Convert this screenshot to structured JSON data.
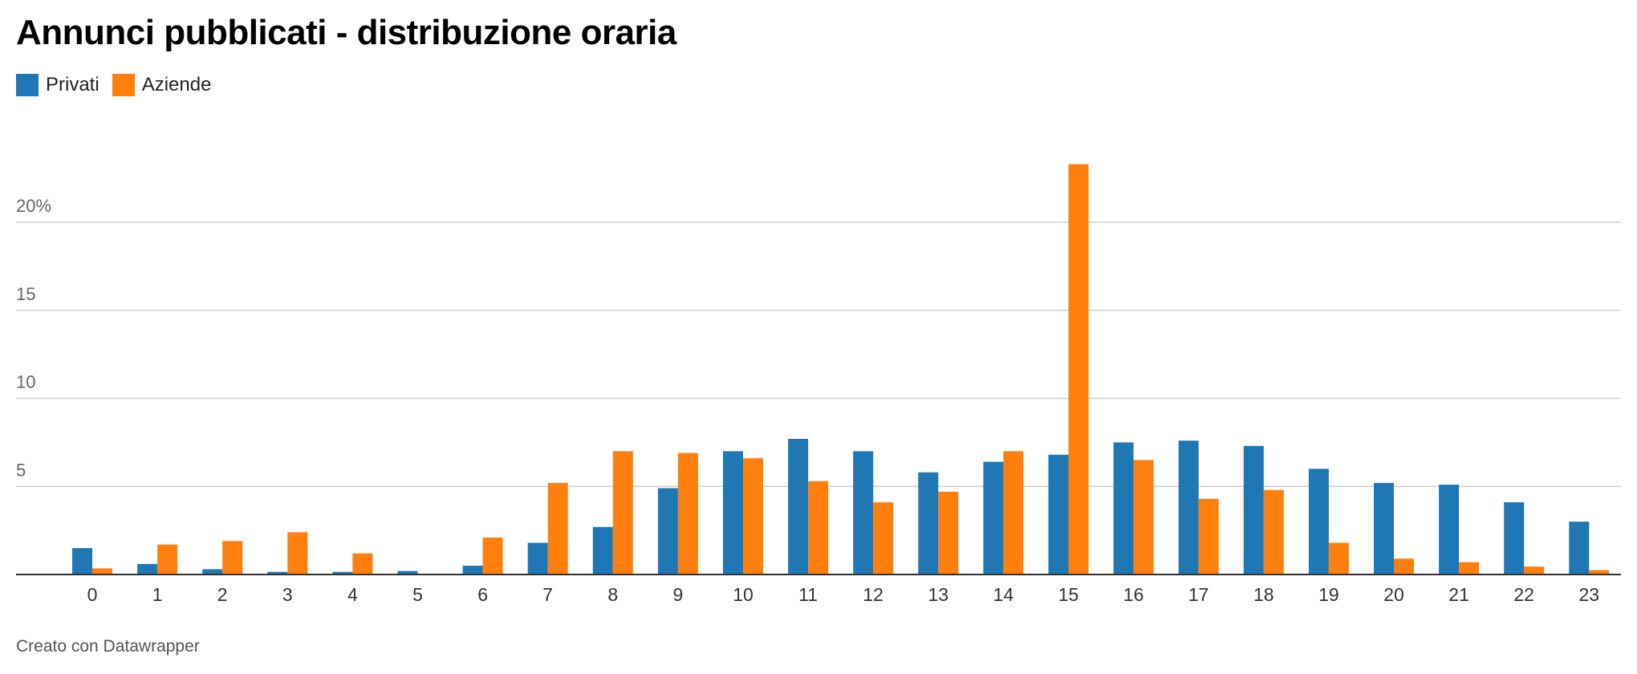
{
  "title": "Annunci pubblicati - distribuzione oraria",
  "footer": "Creato con Datawrapper",
  "legend": [
    {
      "label": "Privati",
      "color": "#1f77b4"
    },
    {
      "label": "Aziende",
      "color": "#ff7f0e"
    }
  ],
  "chart_data": {
    "type": "bar",
    "title": "Annunci pubblicati - distribuzione oraria",
    "xlabel": "",
    "ylabel": "",
    "ylim": [
      0,
      25
    ],
    "yticks": [
      5,
      10,
      15,
      20
    ],
    "ytick_labels": [
      "5",
      "10",
      "15",
      "20%"
    ],
    "grid": true,
    "legend_position": "top-left",
    "categories": [
      "0",
      "1",
      "2",
      "3",
      "4",
      "5",
      "6",
      "7",
      "8",
      "9",
      "10",
      "11",
      "12",
      "13",
      "14",
      "15",
      "16",
      "17",
      "18",
      "19",
      "20",
      "21",
      "22",
      "23"
    ],
    "series": [
      {
        "name": "Privati",
        "color": "#1f77b4",
        "values": [
          1.5,
          0.6,
          0.3,
          0.15,
          0.15,
          0.2,
          0.5,
          1.8,
          2.7,
          4.9,
          7.0,
          7.7,
          7.0,
          5.8,
          6.4,
          6.8,
          7.5,
          7.6,
          7.3,
          6.0,
          5.2,
          5.1,
          4.1,
          3.0
        ]
      },
      {
        "name": "Aziende",
        "color": "#ff7f0e",
        "values": [
          0.35,
          1.7,
          1.9,
          2.4,
          1.2,
          0.05,
          2.1,
          5.2,
          7.0,
          6.9,
          6.6,
          5.3,
          4.1,
          4.7,
          7.0,
          23.3,
          6.5,
          4.3,
          4.8,
          1.8,
          0.9,
          0.7,
          0.45,
          0.25
        ]
      }
    ]
  }
}
